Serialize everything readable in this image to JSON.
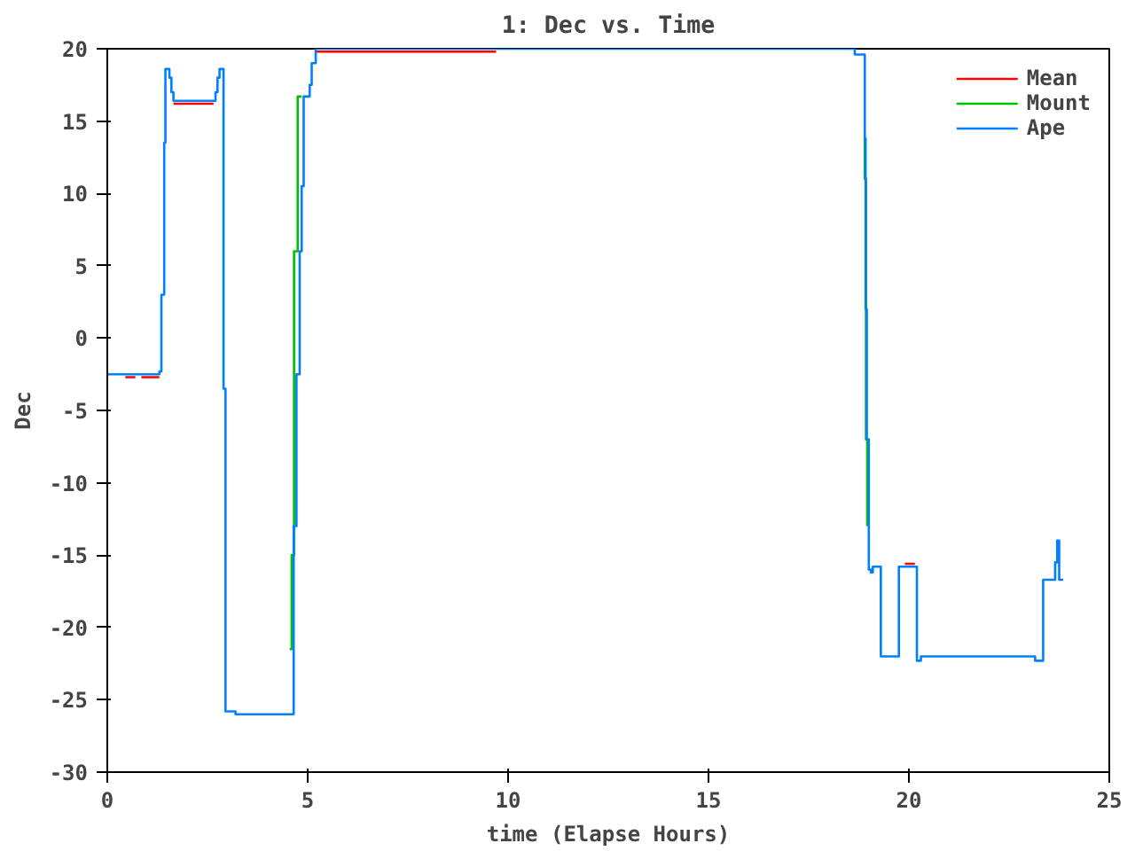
{
  "chart_data": {
    "type": "step",
    "title": "1: Dec vs. Time",
    "xlabel": "time (Elapse Hours)",
    "ylabel": "Dec",
    "xlim": [
      0,
      25
    ],
    "ylim": [
      -30,
      20
    ],
    "xticks": [
      0,
      5,
      10,
      15,
      20,
      25
    ],
    "yticks": [
      -30,
      -25,
      -20,
      -15,
      -10,
      -5,
      0,
      5,
      10,
      15,
      20
    ],
    "grid": false,
    "legend": "top right",
    "line_style": "solid",
    "marker": "none",
    "series": [
      {
        "name": "Mean",
        "color": "#ff0000",
        "x": [
          0.45,
          0.7,
          null,
          0.85,
          1.3,
          null,
          1.65,
          2.65,
          null,
          5.2,
          9.7,
          null,
          19.9,
          20.15
        ],
        "values": [
          -2.7,
          -2.7,
          null,
          -2.7,
          -2.7,
          null,
          16.2,
          16.2,
          null,
          19.8,
          19.8,
          null,
          -15.6,
          -15.6
        ]
      },
      {
        "name": "Mount",
        "color": "#00c000",
        "x": [
          4.55,
          4.6,
          4.66,
          4.75,
          4.85,
          null,
          18.88,
          18.9,
          18.93,
          18.96
        ],
        "values": [
          -21.5,
          -15.0,
          6.0,
          16.7,
          16.7,
          null,
          13.8,
          11.0,
          -7.0,
          -13.0
        ]
      },
      {
        "name": "Ape",
        "color": "#0080ff",
        "x": [
          0,
          1.3,
          1.35,
          1.42,
          1.45,
          1.55,
          1.6,
          1.65,
          2.65,
          2.7,
          2.75,
          2.8,
          2.9,
          2.95,
          3.2,
          4.6,
          4.65,
          4.72,
          4.8,
          4.85,
          4.9,
          5.05,
          5.1,
          5.2,
          18.6,
          18.65,
          18.9,
          18.92,
          18.95,
          19.0,
          19.05,
          19.1,
          19.25,
          19.3,
          19.7,
          19.75,
          20.15,
          20.2,
          20.3,
          23.1,
          23.15,
          23.3,
          23.35,
          23.6,
          23.65,
          23.7,
          23.75,
          23.85
        ],
        "values": [
          -2.5,
          -2.3,
          3,
          13.5,
          18.6,
          18.0,
          17.0,
          16.4,
          16.4,
          17.0,
          18.0,
          18.6,
          -3.5,
          -25.8,
          -26.0,
          -26.0,
          -13.0,
          -2.5,
          6.0,
          10.5,
          16.7,
          17.5,
          19.0,
          20.0,
          20.0,
          19.6,
          13.8,
          2.0,
          -7.0,
          -16.0,
          -16.2,
          -15.8,
          -15.8,
          -22.0,
          -22.0,
          -15.8,
          -15.8,
          -22.3,
          -22.0,
          -22.0,
          -22.3,
          -22.3,
          -16.7,
          -16.7,
          -15.5,
          -14.0,
          -16.7,
          -16.7
        ]
      }
    ]
  }
}
